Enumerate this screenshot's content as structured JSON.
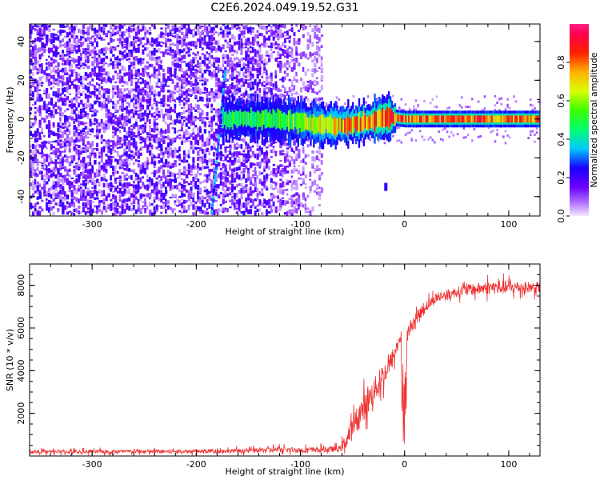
{
  "title": "C2E6.2024.049.19.52.G31",
  "colors": {
    "signal_line": "#ee3333",
    "scatter_base": "#6a00ff"
  },
  "chart_data": [
    {
      "type": "heatmap",
      "xlabel": "Height of straight line (km)",
      "ylabel": "Frequency (Hz)",
      "xlim": [
        -360,
        130
      ],
      "ylim": [
        -50,
        49
      ],
      "xticks": [
        -300,
        -200,
        -100,
        0,
        100
      ],
      "yticks": [
        -40,
        -20,
        0,
        20,
        40
      ],
      "colorbar": {
        "label": "Normalized spectral amplitude",
        "ticks": [
          0.0,
          0.2,
          0.4,
          0.6,
          0.8
        ],
        "range": [
          0,
          1
        ]
      },
      "noise_region": {
        "x": [
          -360,
          -90
        ],
        "freq": [
          -50,
          49
        ]
      },
      "features": [
        {
          "kind": "streak",
          "x": [
            -185,
            -172
          ],
          "freq": [
            -48,
            26
          ]
        },
        {
          "kind": "spot",
          "x": -18,
          "freq": -35
        }
      ],
      "signal_track": {
        "x": [
          -175,
          -150,
          -130,
          -110,
          -95,
          -80,
          -60,
          -40,
          -25,
          -15,
          0,
          50,
          130
        ],
        "freq": [
          0,
          0,
          0,
          -1,
          -2,
          -3,
          -3,
          -2,
          0,
          1,
          0,
          0,
          0
        ],
        "amplitude": [
          0.5,
          0.55,
          0.55,
          0.6,
          0.7,
          0.75,
          0.8,
          0.85,
          0.9,
          0.9,
          0.9,
          0.9,
          0.9
        ]
      }
    },
    {
      "type": "line",
      "xlabel": "Height of straight line (km)",
      "ylabel": "SNR (10 * v/v)",
      "xlim": [
        -360,
        130
      ],
      "ylim": [
        0,
        9000
      ],
      "xticks": [
        -300,
        -200,
        -100,
        0,
        100
      ],
      "yticks": [
        2000,
        4000,
        6000,
        8000
      ],
      "series": [
        {
          "x": [
            -360,
            -300,
            -200,
            -150,
            -120,
            -100,
            -80,
            -62,
            -55,
            -45,
            -35,
            -25,
            -15,
            -8,
            -3,
            0,
            2,
            5,
            10,
            20,
            30,
            50,
            80,
            100,
            130
          ],
          "y": [
            200,
            200,
            220,
            250,
            300,
            280,
            300,
            330,
            800,
            1800,
            2600,
            3400,
            4200,
            5000,
            5800,
            2000,
            5600,
            6000,
            6400,
            7000,
            7400,
            7700,
            7900,
            7900,
            7900
          ],
          "noise_amp": [
            120,
            120,
            130,
            150,
            200,
            180,
            180,
            200,
            600,
            900,
            900,
            800,
            700,
            600,
            500,
            400,
            500,
            500,
            450,
            400,
            350,
            350,
            450,
            450,
            350
          ]
        }
      ]
    }
  ]
}
